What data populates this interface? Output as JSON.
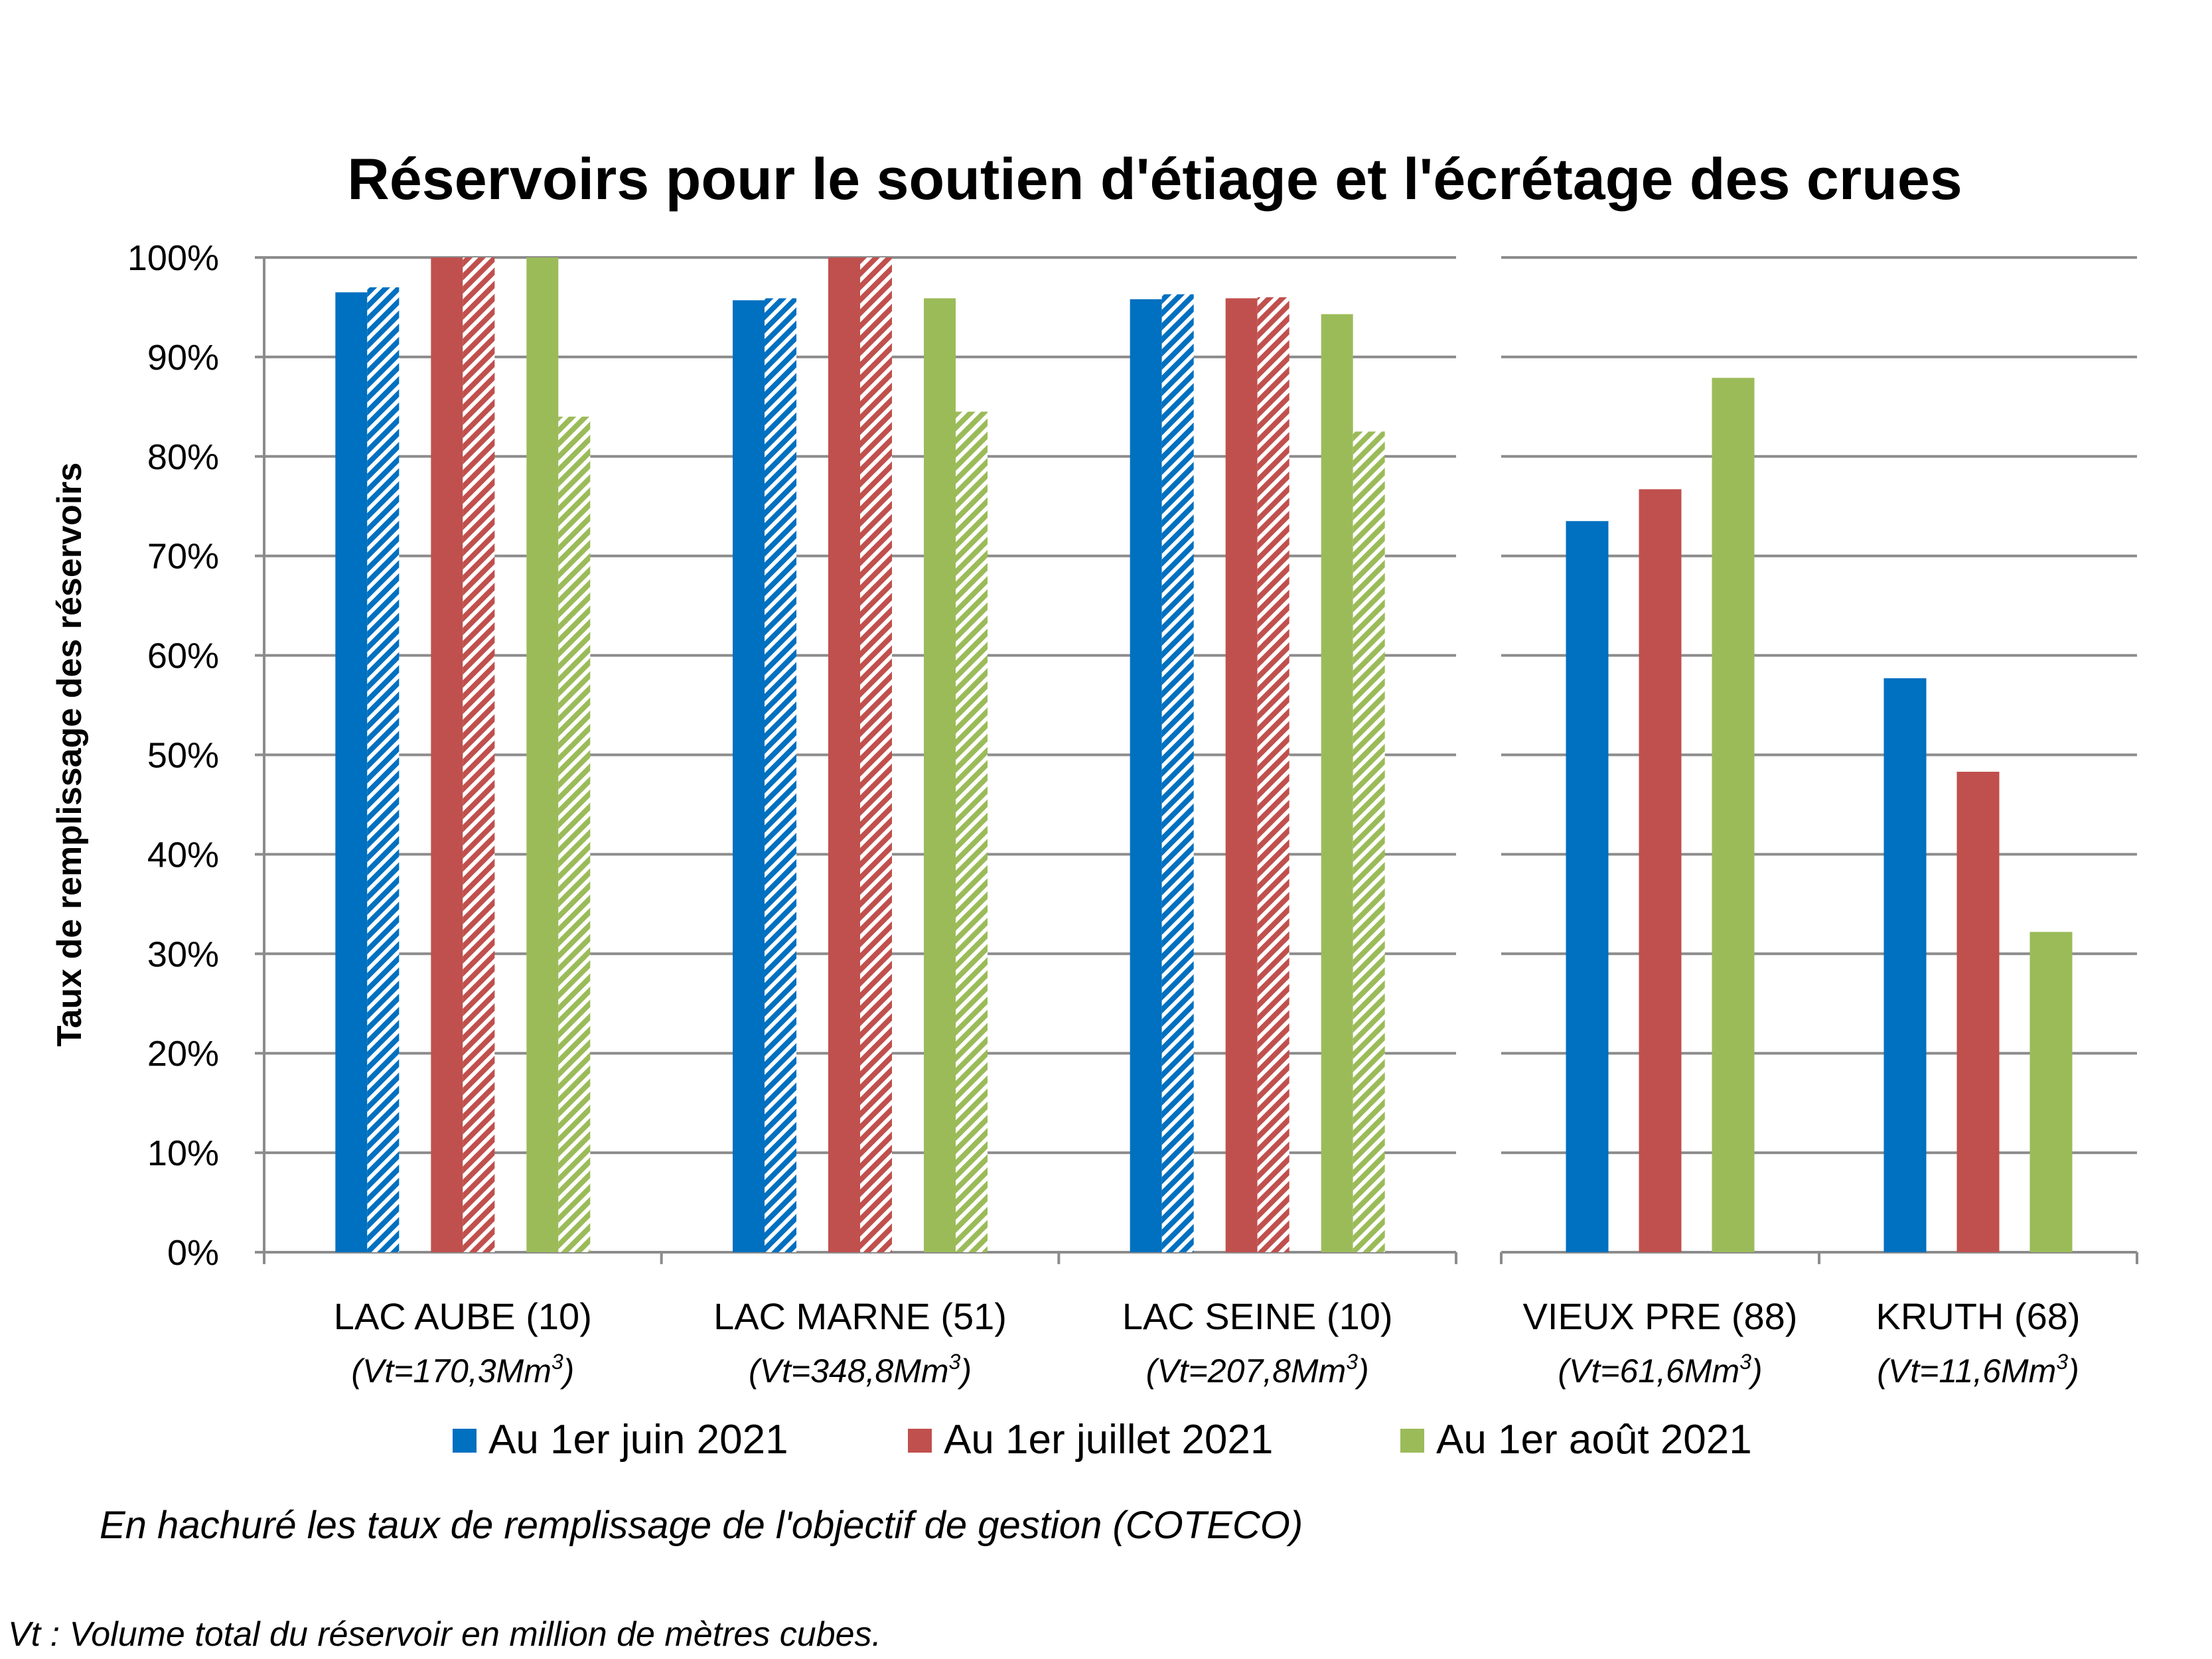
{
  "chart_data": {
    "type": "bar",
    "title": "Réservoirs pour le soutien d'étiage et l'écrétage des crues",
    "ylabel": "Taux de remplissage des réservoirs",
    "ylim": [
      0,
      100
    ],
    "yticks": [
      "0%",
      "10%",
      "20%",
      "30%",
      "40%",
      "50%",
      "60%",
      "70%",
      "80%",
      "90%",
      "100%"
    ],
    "grid": true,
    "legend_position": "bottom",
    "categories": [
      {
        "name": "LAC AUBE (10)",
        "volume_prefix": "(Vt=170,3Mm",
        "volume_sup": "3",
        "volume_suffix": ")",
        "panel": "left"
      },
      {
        "name": "LAC MARNE (51)",
        "volume_prefix": "(Vt=348,8Mm",
        "volume_sup": "3",
        "volume_suffix": ")",
        "panel": "left"
      },
      {
        "name": "LAC SEINE (10)",
        "volume_prefix": "(Vt=207,8Mm",
        "volume_sup": "3",
        "volume_suffix": ")",
        "panel": "left"
      },
      {
        "name": "VIEUX PRE (88)",
        "volume_prefix": "(Vt=61,6Mm",
        "volume_sup": "3",
        "volume_suffix": ")",
        "panel": "right"
      },
      {
        "name": "KRUTH (68)",
        "volume_prefix": "(Vt=11,6Mm",
        "volume_sup": "3",
        "volume_suffix": ")",
        "panel": "right"
      }
    ],
    "series": [
      {
        "name": "Au 1er juin 2021",
        "color": "#0070C0",
        "values": [
          96.5,
          95.7,
          95.8,
          73.5,
          57.7
        ],
        "objective": [
          97,
          95.9,
          96.3,
          null,
          null
        ]
      },
      {
        "name": "Au 1er juillet 2021",
        "color": "#C0504D",
        "values": [
          100,
          100,
          95.9,
          76.7,
          48.3
        ],
        "objective": [
          100,
          100,
          96,
          null,
          null
        ]
      },
      {
        "name": "Au 1er août 2021",
        "color": "#9BBB59",
        "values": [
          100,
          95.9,
          94.3,
          87.9,
          32.2
        ],
        "objective": [
          84,
          84.5,
          82.5,
          null,
          null
        ]
      }
    ],
    "note": "En hachuré les taux de remplissage de l'objectif de gestion (COTECO)",
    "footnote": "Vt : Volume total du réservoir en million de mètres cubes."
  }
}
